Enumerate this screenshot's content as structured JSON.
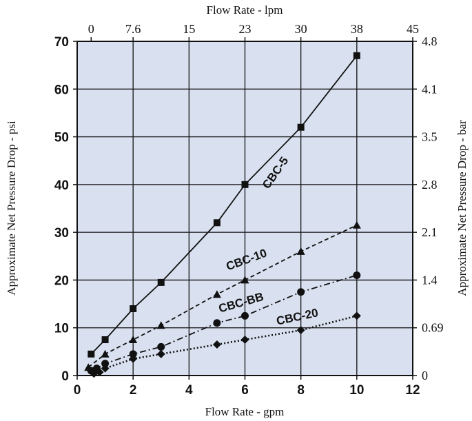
{
  "chart_data": {
    "type": "line",
    "xlabel": "Flow Rate - gpm",
    "ylabel": "Approximate Net Pressure Drop - psi",
    "top_xlabel": "Flow Rate - lpm",
    "right_ylabel": "Approximate Net Pressure Drop - bar",
    "xlim": [
      0,
      12
    ],
    "ylim": [
      0,
      70
    ],
    "x_ticks": [
      "0",
      "2",
      "4",
      "6",
      "8",
      "10",
      "12"
    ],
    "y_ticks": [
      "0",
      "10",
      "20",
      "30",
      "40",
      "50",
      "60",
      "70"
    ],
    "top_ticks": [
      {
        "label": "0",
        "x": 0.5
      },
      {
        "label": "7.6",
        "x": 2
      },
      {
        "label": "15",
        "x": 4
      },
      {
        "label": "23",
        "x": 6
      },
      {
        "label": "30",
        "x": 8
      },
      {
        "label": "38",
        "x": 10
      },
      {
        "label": "45",
        "x": 12
      }
    ],
    "right_ticks": [
      {
        "label": "0",
        "y": 0
      },
      {
        "label": "0.69",
        "y": 10
      },
      {
        "label": "1.4",
        "y": 20
      },
      {
        "label": "2.1",
        "y": 30
      },
      {
        "label": "2.8",
        "y": 40
      },
      {
        "label": "3.5",
        "y": 50
      },
      {
        "label": "4.1",
        "y": 60
      },
      {
        "label": "4.8",
        "y": 70
      }
    ],
    "grid": true,
    "series": [
      {
        "name": "CBC-5",
        "style": "solid",
        "marker": "square",
        "label_pos": {
          "x": 7.2,
          "y": 42,
          "rotate": -55
        },
        "points": [
          [
            0.5,
            4.5
          ],
          [
            1.0,
            7.5
          ],
          [
            2.0,
            14
          ],
          [
            3.0,
            19.5
          ],
          [
            5.0,
            32
          ],
          [
            6.0,
            40
          ],
          [
            8.0,
            52
          ],
          [
            10.0,
            67
          ]
        ]
      },
      {
        "name": "CBC-10",
        "style": "dashed",
        "marker": "triangle",
        "label_pos": {
          "x": 6.1,
          "y": 23.5,
          "rotate": -20
        },
        "points": [
          [
            0.4,
            1.7
          ],
          [
            1.0,
            4.5
          ],
          [
            2.0,
            7.5
          ],
          [
            3.0,
            10.5
          ],
          [
            5.0,
            17
          ],
          [
            6.0,
            20
          ],
          [
            8.0,
            26
          ],
          [
            10.0,
            31.5
          ]
        ]
      },
      {
        "name": "CBC-BB",
        "style": "dashdot",
        "marker": "circle",
        "label_pos": {
          "x": 5.9,
          "y": 14.5,
          "rotate": -16
        },
        "points": [
          [
            0.5,
            1.0
          ],
          [
            0.7,
            1.5
          ],
          [
            1.0,
            2.5
          ],
          [
            2.0,
            4.5
          ],
          [
            3.0,
            6.0
          ],
          [
            5.0,
            11
          ],
          [
            6.0,
            12.5
          ],
          [
            8.0,
            17.5
          ],
          [
            10.0,
            21
          ]
        ]
      },
      {
        "name": "CBC-20",
        "style": "dotted",
        "marker": "diamond",
        "label_pos": {
          "x": 7.9,
          "y": 11.5,
          "rotate": -12
        },
        "points": [
          [
            0.6,
            0.4
          ],
          [
            0.8,
            0.7
          ],
          [
            1.0,
            1.5
          ],
          [
            2.0,
            3.5
          ],
          [
            3.0,
            4.5
          ],
          [
            5.0,
            6.5
          ],
          [
            6.0,
            7.5
          ],
          [
            8.0,
            9.5
          ],
          [
            10.0,
            12.5
          ]
        ]
      }
    ]
  },
  "colors": {
    "plot_bg": "#d9e0ef",
    "grid": "#111111",
    "line": "#111111"
  }
}
